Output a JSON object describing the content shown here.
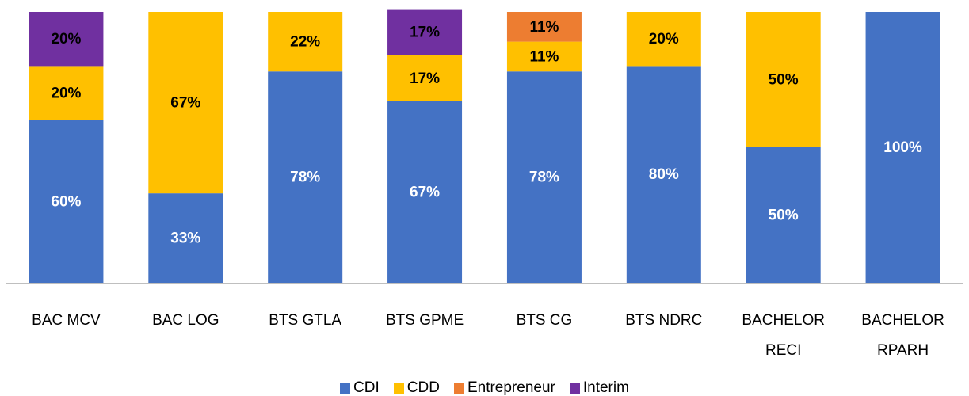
{
  "chart_data": {
    "type": "bar",
    "stacked": true,
    "categories": [
      "BAC MCV",
      "BAC LOG",
      "BTS GTLA",
      "BTS GPME",
      "BTS CG",
      "BTS NDRC",
      "BACHELOR RECI",
      "BACHELOR RPARH"
    ],
    "ylim": [
      0,
      100
    ],
    "series": [
      {
        "name": "CDI",
        "color": "#4472c4",
        "label_color": "#ffffff",
        "values": [
          60,
          33,
          78,
          67,
          78,
          80,
          50,
          100
        ],
        "value_labels": [
          "60%",
          "33%",
          "78%",
          "67%",
          "78%",
          "80%",
          "50%",
          "100%"
        ]
      },
      {
        "name": "CDD",
        "color": "#ffc000",
        "label_color": "#000000",
        "values": [
          20,
          67,
          22,
          17,
          11,
          20,
          50,
          null
        ],
        "value_labels": [
          "20%",
          "67%",
          "22%",
          "17%",
          "11%",
          "20%",
          "50%",
          null
        ]
      },
      {
        "name": "Entrepreneur",
        "color": "#ed7d31",
        "label_color": "#000000",
        "values": [
          null,
          null,
          null,
          null,
          11,
          null,
          null,
          null
        ],
        "value_labels": [
          null,
          null,
          null,
          null,
          "11%",
          null,
          null,
          null
        ]
      },
      {
        "name": "Interim",
        "color": "#7030a0",
        "label_color": "#000000",
        "values": [
          20,
          null,
          null,
          17,
          null,
          null,
          null,
          null
        ],
        "value_labels": [
          "20%",
          null,
          null,
          "17%",
          null,
          null,
          null,
          null
        ]
      }
    ],
    "legend": "bottom"
  }
}
